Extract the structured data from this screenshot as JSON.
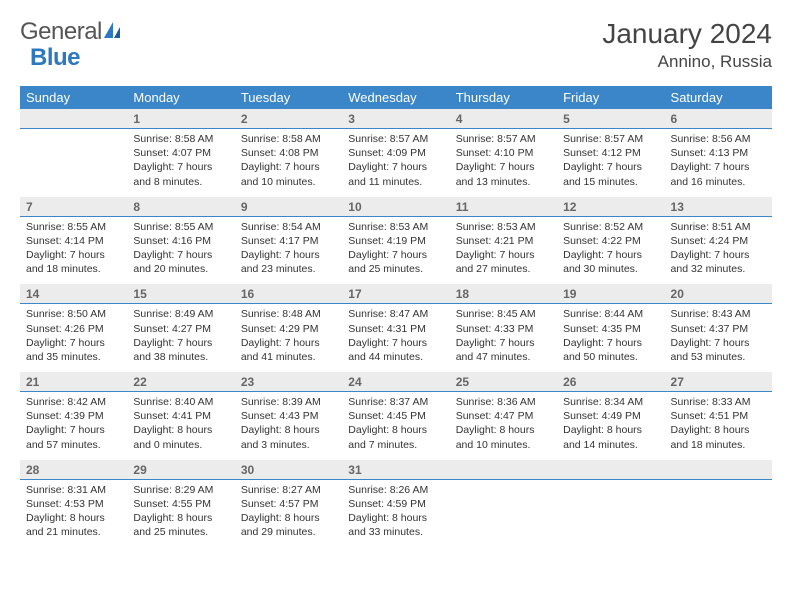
{
  "logo": {
    "text_a": "General",
    "text_b": "Blue"
  },
  "title": "January 2024",
  "location": "Annino, Russia",
  "colors": {
    "header_bg": "#3b86c8",
    "header_text": "#ffffff",
    "daynum_bg": "#ececec",
    "daynum_border": "#3b86c8",
    "body_text": "#333333",
    "title_text": "#444444",
    "logo_gray": "#555555",
    "logo_blue": "#2e78c2"
  },
  "fonts": {
    "title_size": 28,
    "location_size": 17,
    "header_size": 13,
    "daynum_size": 12,
    "detail_size": 10.5
  },
  "day_headers": [
    "Sunday",
    "Monday",
    "Tuesday",
    "Wednesday",
    "Thursday",
    "Friday",
    "Saturday"
  ],
  "weeks": [
    [
      {
        "n": "",
        "lines": [
          "",
          "",
          "",
          ""
        ]
      },
      {
        "n": "1",
        "lines": [
          "Sunrise: 8:58 AM",
          "Sunset: 4:07 PM",
          "Daylight: 7 hours",
          "and 8 minutes."
        ]
      },
      {
        "n": "2",
        "lines": [
          "Sunrise: 8:58 AM",
          "Sunset: 4:08 PM",
          "Daylight: 7 hours",
          "and 10 minutes."
        ]
      },
      {
        "n": "3",
        "lines": [
          "Sunrise: 8:57 AM",
          "Sunset: 4:09 PM",
          "Daylight: 7 hours",
          "and 11 minutes."
        ]
      },
      {
        "n": "4",
        "lines": [
          "Sunrise: 8:57 AM",
          "Sunset: 4:10 PM",
          "Daylight: 7 hours",
          "and 13 minutes."
        ]
      },
      {
        "n": "5",
        "lines": [
          "Sunrise: 8:57 AM",
          "Sunset: 4:12 PM",
          "Daylight: 7 hours",
          "and 15 minutes."
        ]
      },
      {
        "n": "6",
        "lines": [
          "Sunrise: 8:56 AM",
          "Sunset: 4:13 PM",
          "Daylight: 7 hours",
          "and 16 minutes."
        ]
      }
    ],
    [
      {
        "n": "7",
        "lines": [
          "Sunrise: 8:55 AM",
          "Sunset: 4:14 PM",
          "Daylight: 7 hours",
          "and 18 minutes."
        ]
      },
      {
        "n": "8",
        "lines": [
          "Sunrise: 8:55 AM",
          "Sunset: 4:16 PM",
          "Daylight: 7 hours",
          "and 20 minutes."
        ]
      },
      {
        "n": "9",
        "lines": [
          "Sunrise: 8:54 AM",
          "Sunset: 4:17 PM",
          "Daylight: 7 hours",
          "and 23 minutes."
        ]
      },
      {
        "n": "10",
        "lines": [
          "Sunrise: 8:53 AM",
          "Sunset: 4:19 PM",
          "Daylight: 7 hours",
          "and 25 minutes."
        ]
      },
      {
        "n": "11",
        "lines": [
          "Sunrise: 8:53 AM",
          "Sunset: 4:21 PM",
          "Daylight: 7 hours",
          "and 27 minutes."
        ]
      },
      {
        "n": "12",
        "lines": [
          "Sunrise: 8:52 AM",
          "Sunset: 4:22 PM",
          "Daylight: 7 hours",
          "and 30 minutes."
        ]
      },
      {
        "n": "13",
        "lines": [
          "Sunrise: 8:51 AM",
          "Sunset: 4:24 PM",
          "Daylight: 7 hours",
          "and 32 minutes."
        ]
      }
    ],
    [
      {
        "n": "14",
        "lines": [
          "Sunrise: 8:50 AM",
          "Sunset: 4:26 PM",
          "Daylight: 7 hours",
          "and 35 minutes."
        ]
      },
      {
        "n": "15",
        "lines": [
          "Sunrise: 8:49 AM",
          "Sunset: 4:27 PM",
          "Daylight: 7 hours",
          "and 38 minutes."
        ]
      },
      {
        "n": "16",
        "lines": [
          "Sunrise: 8:48 AM",
          "Sunset: 4:29 PM",
          "Daylight: 7 hours",
          "and 41 minutes."
        ]
      },
      {
        "n": "17",
        "lines": [
          "Sunrise: 8:47 AM",
          "Sunset: 4:31 PM",
          "Daylight: 7 hours",
          "and 44 minutes."
        ]
      },
      {
        "n": "18",
        "lines": [
          "Sunrise: 8:45 AM",
          "Sunset: 4:33 PM",
          "Daylight: 7 hours",
          "and 47 minutes."
        ]
      },
      {
        "n": "19",
        "lines": [
          "Sunrise: 8:44 AM",
          "Sunset: 4:35 PM",
          "Daylight: 7 hours",
          "and 50 minutes."
        ]
      },
      {
        "n": "20",
        "lines": [
          "Sunrise: 8:43 AM",
          "Sunset: 4:37 PM",
          "Daylight: 7 hours",
          "and 53 minutes."
        ]
      }
    ],
    [
      {
        "n": "21",
        "lines": [
          "Sunrise: 8:42 AM",
          "Sunset: 4:39 PM",
          "Daylight: 7 hours",
          "and 57 minutes."
        ]
      },
      {
        "n": "22",
        "lines": [
          "Sunrise: 8:40 AM",
          "Sunset: 4:41 PM",
          "Daylight: 8 hours",
          "and 0 minutes."
        ]
      },
      {
        "n": "23",
        "lines": [
          "Sunrise: 8:39 AM",
          "Sunset: 4:43 PM",
          "Daylight: 8 hours",
          "and 3 minutes."
        ]
      },
      {
        "n": "24",
        "lines": [
          "Sunrise: 8:37 AM",
          "Sunset: 4:45 PM",
          "Daylight: 8 hours",
          "and 7 minutes."
        ]
      },
      {
        "n": "25",
        "lines": [
          "Sunrise: 8:36 AM",
          "Sunset: 4:47 PM",
          "Daylight: 8 hours",
          "and 10 minutes."
        ]
      },
      {
        "n": "26",
        "lines": [
          "Sunrise: 8:34 AM",
          "Sunset: 4:49 PM",
          "Daylight: 8 hours",
          "and 14 minutes."
        ]
      },
      {
        "n": "27",
        "lines": [
          "Sunrise: 8:33 AM",
          "Sunset: 4:51 PM",
          "Daylight: 8 hours",
          "and 18 minutes."
        ]
      }
    ],
    [
      {
        "n": "28",
        "lines": [
          "Sunrise: 8:31 AM",
          "Sunset: 4:53 PM",
          "Daylight: 8 hours",
          "and 21 minutes."
        ]
      },
      {
        "n": "29",
        "lines": [
          "Sunrise: 8:29 AM",
          "Sunset: 4:55 PM",
          "Daylight: 8 hours",
          "and 25 minutes."
        ]
      },
      {
        "n": "30",
        "lines": [
          "Sunrise: 8:27 AM",
          "Sunset: 4:57 PM",
          "Daylight: 8 hours",
          "and 29 minutes."
        ]
      },
      {
        "n": "31",
        "lines": [
          "Sunrise: 8:26 AM",
          "Sunset: 4:59 PM",
          "Daylight: 8 hours",
          "and 33 minutes."
        ]
      },
      {
        "n": "",
        "lines": [
          "",
          "",
          "",
          ""
        ]
      },
      {
        "n": "",
        "lines": [
          "",
          "",
          "",
          ""
        ]
      },
      {
        "n": "",
        "lines": [
          "",
          "",
          "",
          ""
        ]
      }
    ]
  ]
}
